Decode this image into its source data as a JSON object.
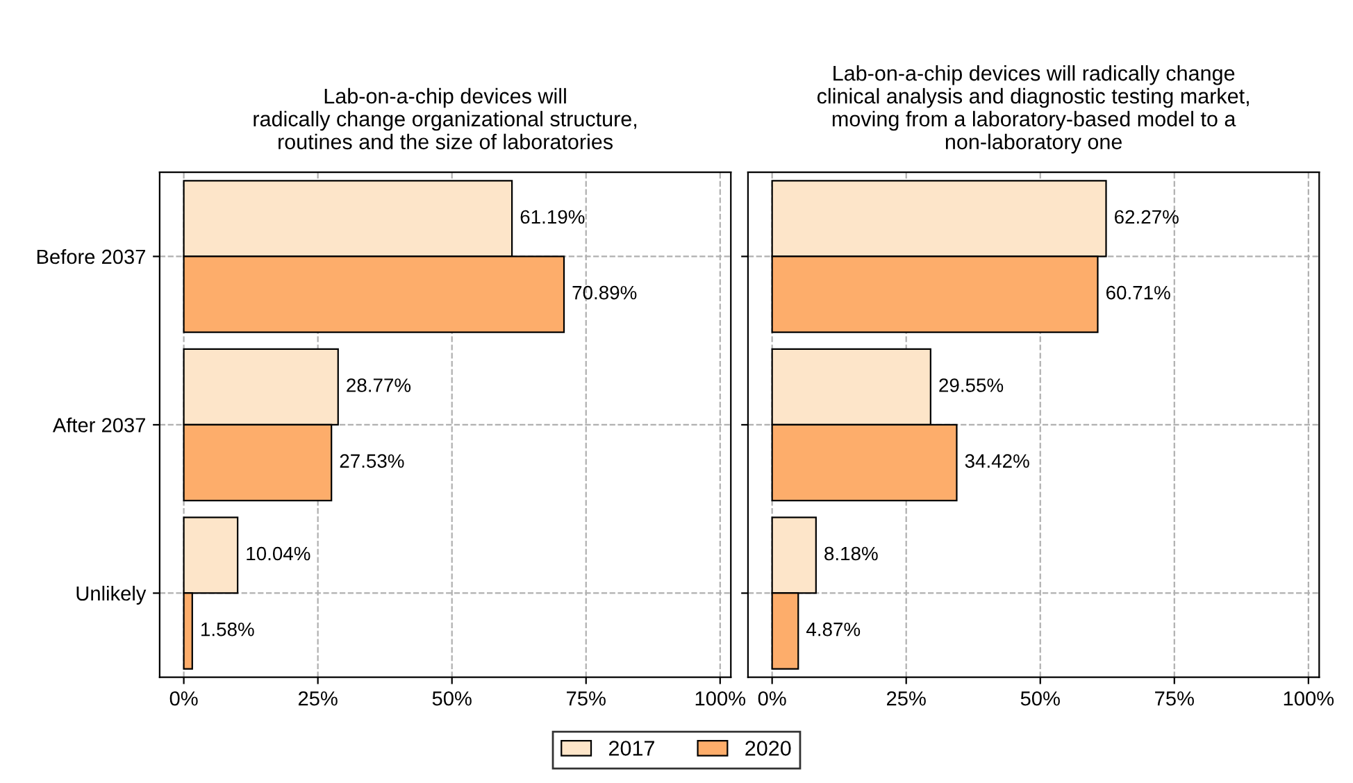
{
  "chart_data": [
    {
      "type": "bar",
      "orientation": "horizontal",
      "title": "Lab-on-a-chip devices will\nradically change organizational structure,\nroutines and the size of laboratories",
      "categories": [
        "Before 2037",
        "After 2037",
        "Unlikely"
      ],
      "series": [
        {
          "name": "2017",
          "color": "#fde5c9",
          "values": [
            61.19,
            28.77,
            10.04
          ],
          "value_labels": [
            "61.19%",
            "28.77%",
            "10.04%"
          ]
        },
        {
          "name": "2020",
          "color": "#fdad6b",
          "values": [
            70.89,
            27.53,
            1.58
          ],
          "value_labels": [
            "70.89%",
            "27.53%",
            "1.58%"
          ]
        }
      ],
      "xlim": [
        -4.5,
        102
      ],
      "xticks": [
        {
          "value": 0,
          "label": "0%"
        },
        {
          "value": 25,
          "label": "25%"
        },
        {
          "value": 50,
          "label": "50%"
        },
        {
          "value": 75,
          "label": "75%"
        },
        {
          "value": 100,
          "label": "100%"
        }
      ],
      "grid": true,
      "legend": "bottom"
    },
    {
      "type": "bar",
      "orientation": "horizontal",
      "title": "Lab-on-a-chip devices will radically change\nclinical analysis and diagnostic testing market,\nmoving from a laboratory-based model to a\nnon-laboratory one",
      "categories": [
        null,
        null,
        null
      ],
      "series": [
        {
          "name": "2017",
          "color": "#fde5c9",
          "values": [
            62.27,
            29.55,
            8.18
          ],
          "value_labels": [
            "62.27%",
            "29.55%",
            "8.18%"
          ]
        },
        {
          "name": "2020",
          "color": "#fdad6b",
          "values": [
            60.71,
            34.42,
            4.87
          ],
          "value_labels": [
            "60.71%",
            "34.42%",
            "4.87%"
          ]
        }
      ],
      "xlim": [
        -4.5,
        102
      ],
      "xticks": [
        {
          "value": 0,
          "label": "0%"
        },
        {
          "value": 25,
          "label": "25%"
        },
        {
          "value": 50,
          "label": "50%"
        },
        {
          "value": 75,
          "label": "75%"
        },
        {
          "value": 100,
          "label": "100%"
        }
      ],
      "grid": true,
      "tick_labels": "x",
      "legend": "bottom"
    }
  ]
}
